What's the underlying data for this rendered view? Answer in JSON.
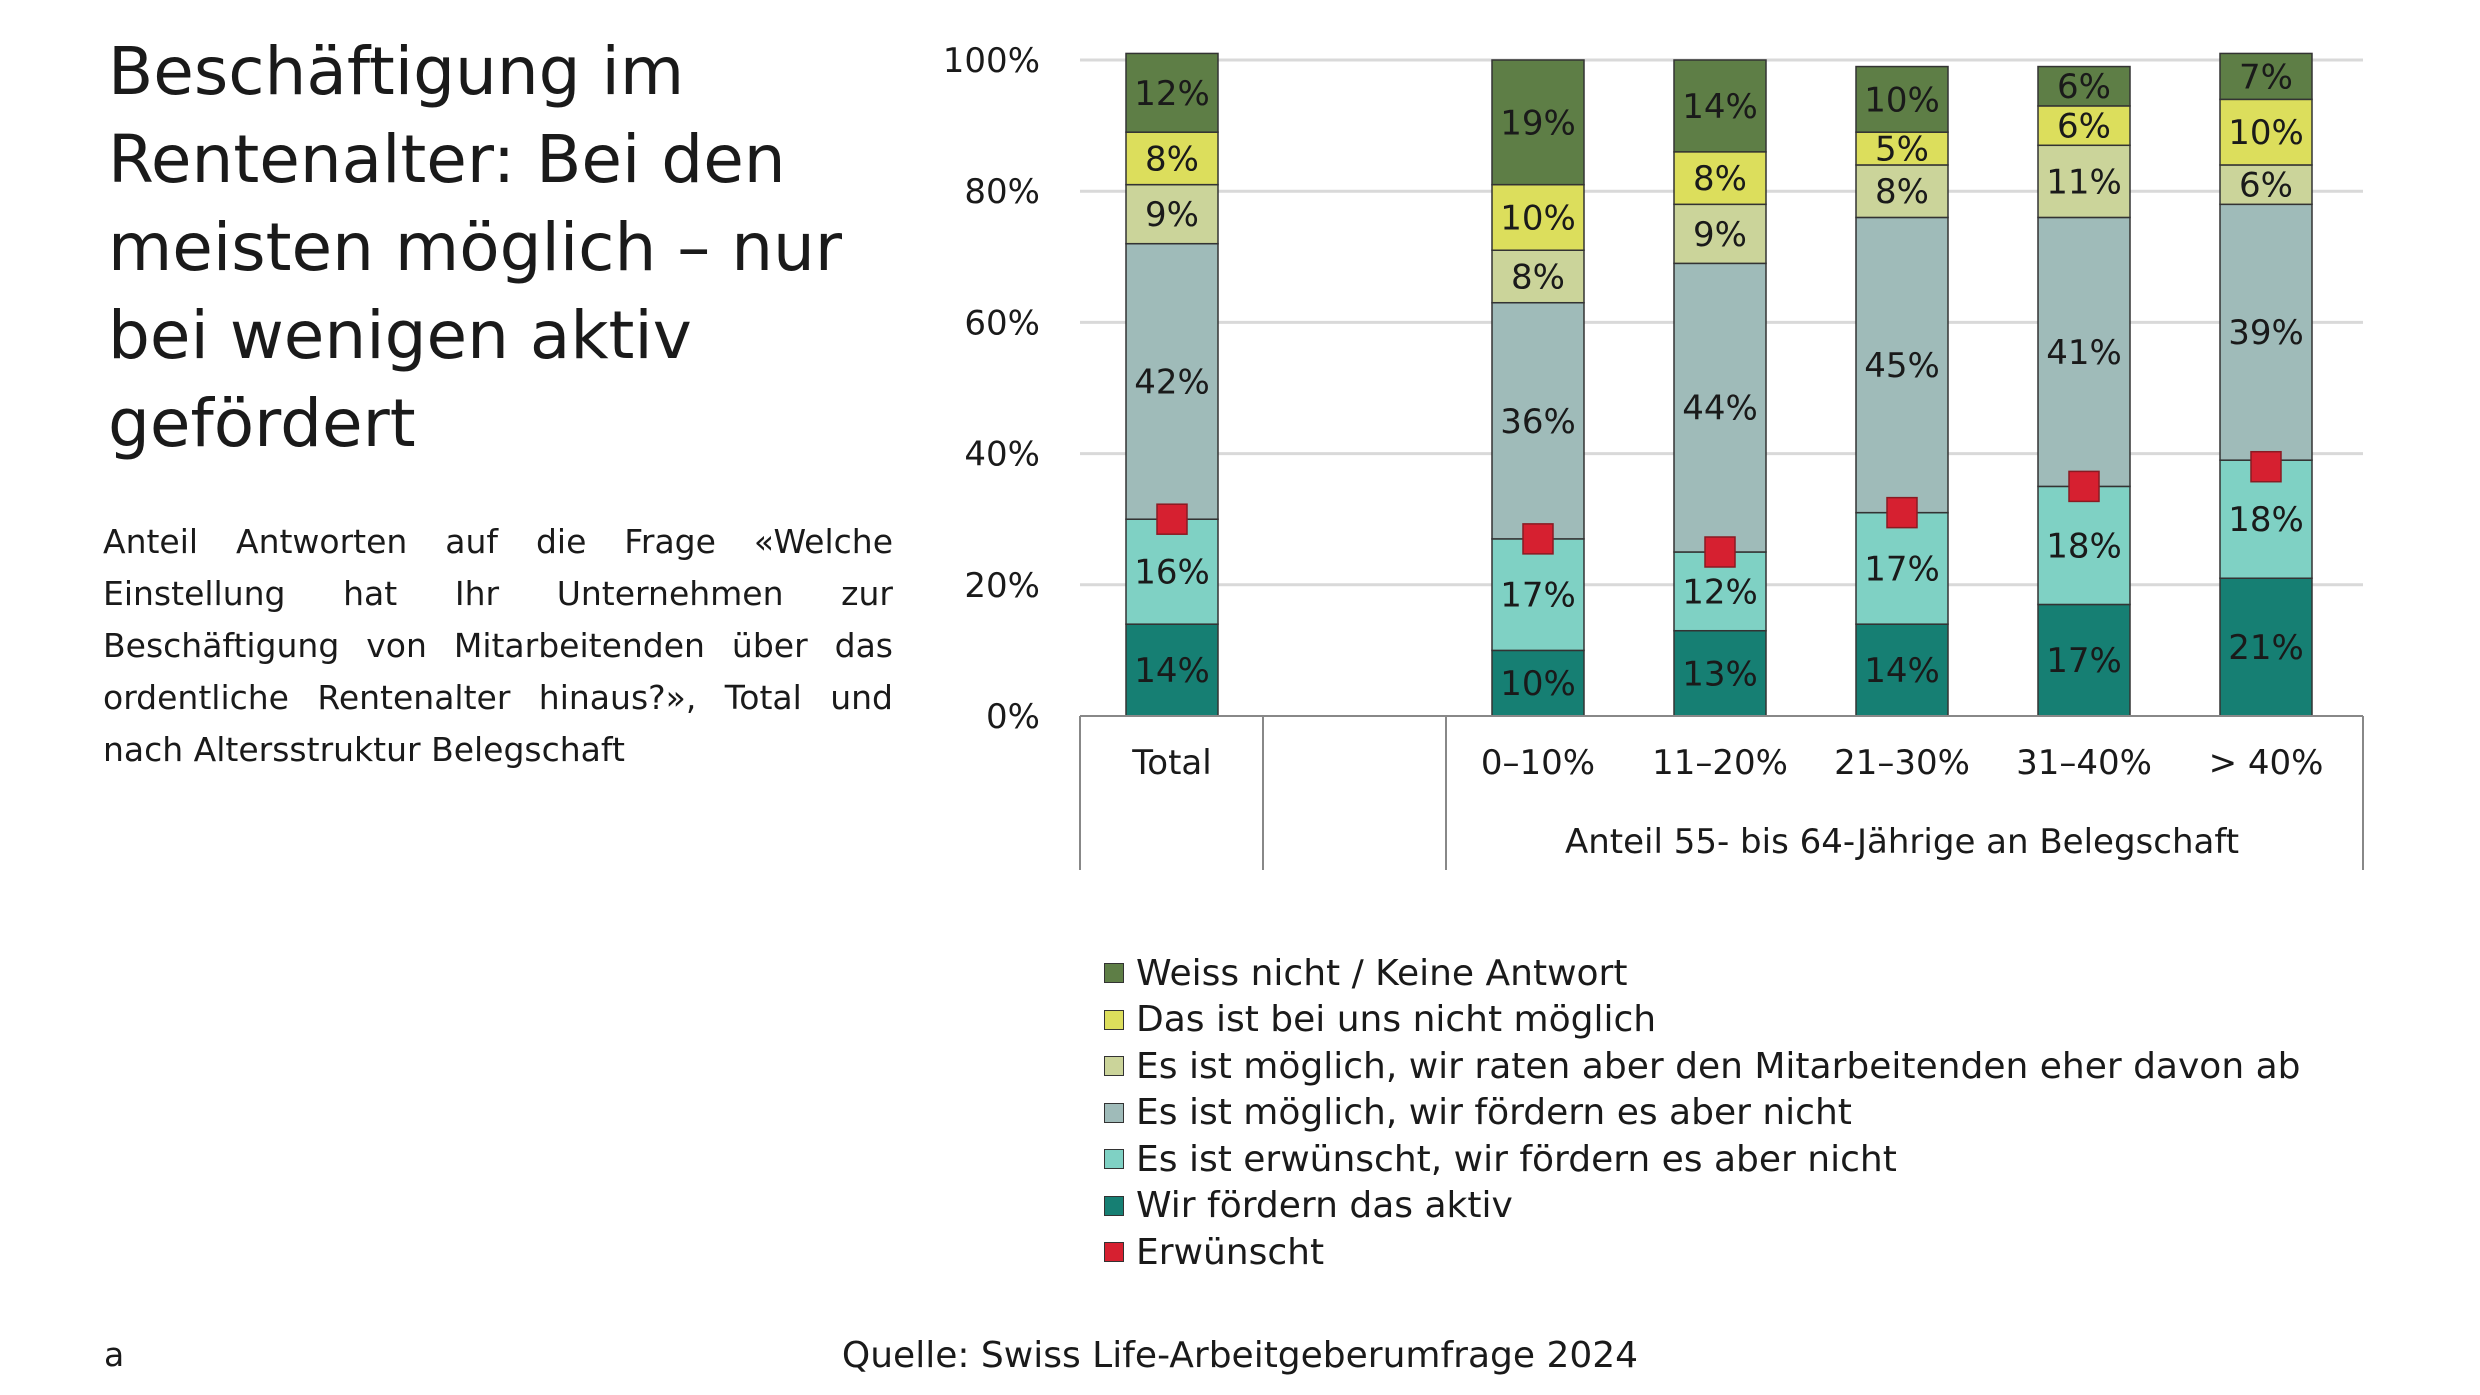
{
  "title": "Beschäftigung im\nRentenalter: Bei den\nmeisten möglich – nur\nbei wenigen aktiv\ngefördert",
  "subtitle": "Anteil Antworten auf die Frage «Welche Einstellung hat Ihr Unternehmen zur Beschäftigung von Mitarbeitenden über das ordentliche Rentenalter hinaus?», Total und nach Altersstruktur Belegschaft",
  "footnote": "a",
  "source": "Quelle: Swiss Life-Arbeitgeberumfrage 2024",
  "colors": {
    "weiss_nicht": "#5e7e46",
    "nicht_moeglich": "#dcde5c",
    "abraten": "#cbd49a",
    "moeglich": "#9fbbb9",
    "erwuenscht": "#7fd1c4",
    "aktiv": "#167f73",
    "marker": "#d62030",
    "grid": "#d9d9d9",
    "axis": "#888888"
  },
  "chart_data": {
    "type": "bar",
    "stacked": true,
    "categories": [
      "Total",
      "0–10%",
      "11–20%",
      "21–30%",
      "31–40%",
      "> 40%"
    ],
    "group_label": "Anteil 55- bis 64-Jährige an Belegschaft",
    "y_ticks": [
      "0%",
      "20%",
      "40%",
      "60%",
      "80%",
      "100%"
    ],
    "ylim": [
      0,
      100
    ],
    "series": [
      {
        "key": "aktiv",
        "name": "Wir fördern das aktiv",
        "values": [
          14,
          10,
          13,
          14,
          17,
          21
        ],
        "labels": [
          "14%",
          "10%",
          "13%",
          "14%",
          "17%",
          "21%"
        ]
      },
      {
        "key": "erwuenscht",
        "name": "Es ist erwünscht, wir fördern es aber nicht",
        "values": [
          16,
          17,
          12,
          17,
          18,
          18
        ],
        "labels": [
          "16%",
          "17%",
          "12%",
          "17%",
          "18%",
          "18%"
        ]
      },
      {
        "key": "moeglich",
        "name": "Es ist möglich, wir fördern es aber nicht",
        "values": [
          42,
          36,
          44,
          45,
          41,
          39
        ],
        "labels": [
          "42%",
          "36%",
          "44%",
          "45%",
          "41%",
          "39%"
        ]
      },
      {
        "key": "abraten",
        "name": "Es ist möglich, wir raten aber den Mitarbeitenden eher davon ab",
        "values": [
          9,
          8,
          9,
          8,
          11,
          6
        ],
        "labels": [
          "9%",
          "8%",
          "9%",
          "8%",
          "11%",
          "6%"
        ]
      },
      {
        "key": "nicht_moeglich",
        "name": "Das ist bei uns nicht möglich",
        "values": [
          8,
          10,
          8,
          5,
          6,
          10
        ],
        "labels": [
          "8%",
          "10%",
          "8%",
          "5%",
          "6%",
          "10%"
        ]
      },
      {
        "key": "weiss_nicht",
        "name": "Weiss nicht / Keine Antwort",
        "values": [
          12,
          19,
          14,
          10,
          6,
          7
        ],
        "labels": [
          "12%",
          "19%",
          "14%",
          "10%",
          "6%",
          "7%"
        ]
      }
    ],
    "marker_series": {
      "name": "Erwünscht",
      "values": [
        30,
        27,
        25,
        31,
        35,
        38
      ]
    }
  },
  "legend": [
    {
      "key": "weiss_nicht",
      "label": "Weiss nicht / Keine Antwort"
    },
    {
      "key": "nicht_moeglich",
      "label": "Das ist bei uns nicht möglich"
    },
    {
      "key": "abraten",
      "label": "Es ist möglich, wir raten aber den Mitarbeitenden eher davon ab"
    },
    {
      "key": "moeglich",
      "label": "Es ist möglich, wir fördern es aber nicht"
    },
    {
      "key": "erwuenscht",
      "label": "Es ist erwünscht, wir fördern es aber nicht"
    },
    {
      "key": "aktiv",
      "label": "Wir fördern das aktiv"
    },
    {
      "key": "marker",
      "label": "Erwünscht"
    }
  ]
}
